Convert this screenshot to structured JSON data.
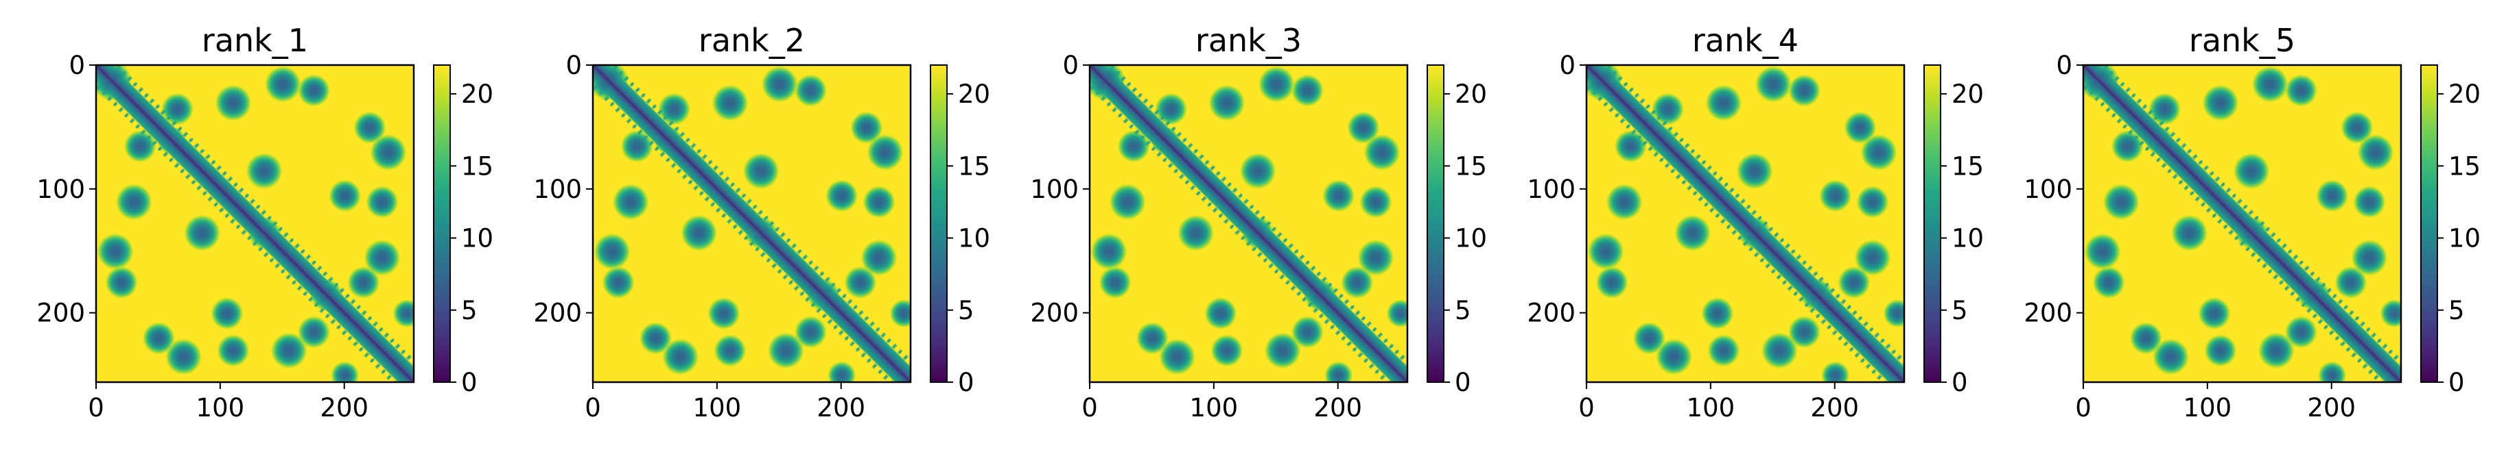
{
  "chart_data": [
    {
      "type": "heatmap",
      "title": "rank_1",
      "xlabel": "",
      "ylabel": "",
      "xlim": [
        0,
        256
      ],
      "ylim": [
        256,
        0
      ],
      "x_ticks": [
        "0",
        "100",
        "200"
      ],
      "y_ticks": [
        "0",
        "100",
        "200"
      ],
      "x_tick_values": [
        0,
        100,
        200
      ],
      "y_tick_values": [
        0,
        100,
        200
      ],
      "colorbar": {
        "min": 0,
        "max": 22,
        "ticks": [
          "0",
          "5",
          "10",
          "15",
          "20"
        ],
        "tick_values": [
          0,
          5,
          10,
          15,
          20
        ],
        "colormap": "viridis"
      },
      "matrix_size": 256,
      "description_values": "Symmetric pairwise distance matrix: near 0 along the diagonal, mid values (about 8-14) in contact blobs, saturated at about 22 elsewhere",
      "contact_blobs": [
        [
          12,
          12,
          10
        ],
        [
          35,
          65,
          8
        ],
        [
          30,
          110,
          9
        ],
        [
          60,
          60,
          7
        ],
        [
          85,
          135,
          9
        ],
        [
          105,
          200,
          8
        ],
        [
          135,
          135,
          8
        ],
        [
          155,
          230,
          9
        ],
        [
          175,
          20,
          8
        ],
        [
          185,
          185,
          8
        ],
        [
          200,
          250,
          7
        ],
        [
          230,
          110,
          8
        ],
        [
          235,
          70,
          9
        ],
        [
          215,
          175,
          8
        ],
        [
          15,
          150,
          9
        ],
        [
          50,
          220,
          8
        ]
      ],
      "grid": false
    },
    {
      "type": "heatmap",
      "title": "rank_2",
      "xlabel": "",
      "ylabel": "",
      "xlim": [
        0,
        256
      ],
      "ylim": [
        256,
        0
      ],
      "x_ticks": [
        "0",
        "100",
        "200"
      ],
      "y_ticks": [
        "0",
        "100",
        "200"
      ],
      "x_tick_values": [
        0,
        100,
        200
      ],
      "y_tick_values": [
        0,
        100,
        200
      ],
      "colorbar": {
        "min": 0,
        "max": 22,
        "ticks": [
          "0",
          "5",
          "10",
          "15",
          "20"
        ],
        "tick_values": [
          0,
          5,
          10,
          15,
          20
        ],
        "colormap": "viridis"
      },
      "matrix_size": 256,
      "description_values": "Symmetric pairwise distance matrix similar to rank_1",
      "contact_blobs": [
        [
          12,
          12,
          10
        ],
        [
          35,
          65,
          8
        ],
        [
          30,
          110,
          9
        ],
        [
          60,
          60,
          7
        ],
        [
          85,
          135,
          9
        ],
        [
          105,
          200,
          8
        ],
        [
          135,
          135,
          8
        ],
        [
          155,
          230,
          9
        ],
        [
          175,
          20,
          8
        ],
        [
          185,
          185,
          8
        ],
        [
          200,
          250,
          7
        ],
        [
          230,
          110,
          8
        ],
        [
          235,
          70,
          9
        ],
        [
          215,
          175,
          8
        ],
        [
          15,
          150,
          9
        ],
        [
          50,
          220,
          8
        ]
      ],
      "grid": false
    },
    {
      "type": "heatmap",
      "title": "rank_3",
      "xlabel": "",
      "ylabel": "",
      "xlim": [
        0,
        256
      ],
      "ylim": [
        256,
        0
      ],
      "x_ticks": [
        "0",
        "100",
        "200"
      ],
      "y_ticks": [
        "0",
        "100",
        "200"
      ],
      "x_tick_values": [
        0,
        100,
        200
      ],
      "y_tick_values": [
        0,
        100,
        200
      ],
      "colorbar": {
        "min": 0,
        "max": 22,
        "ticks": [
          "0",
          "5",
          "10",
          "15",
          "20"
        ],
        "tick_values": [
          0,
          5,
          10,
          15,
          20
        ],
        "colormap": "viridis"
      },
      "matrix_size": 256,
      "description_values": "Symmetric pairwise distance matrix similar to rank_1",
      "contact_blobs": [
        [
          12,
          12,
          10
        ],
        [
          35,
          65,
          8
        ],
        [
          30,
          110,
          9
        ],
        [
          60,
          60,
          7
        ],
        [
          85,
          135,
          9
        ],
        [
          105,
          200,
          8
        ],
        [
          135,
          135,
          8
        ],
        [
          155,
          230,
          9
        ],
        [
          175,
          20,
          8
        ],
        [
          185,
          185,
          8
        ],
        [
          200,
          250,
          7
        ],
        [
          230,
          110,
          8
        ],
        [
          235,
          70,
          9
        ],
        [
          215,
          175,
          8
        ],
        [
          15,
          150,
          9
        ],
        [
          50,
          220,
          8
        ]
      ],
      "grid": false
    },
    {
      "type": "heatmap",
      "title": "rank_4",
      "xlabel": "",
      "ylabel": "",
      "xlim": [
        0,
        256
      ],
      "ylim": [
        256,
        0
      ],
      "x_ticks": [
        "0",
        "100",
        "200"
      ],
      "y_ticks": [
        "0",
        "100",
        "200"
      ],
      "x_tick_values": [
        0,
        100,
        200
      ],
      "y_tick_values": [
        0,
        100,
        200
      ],
      "colorbar": {
        "min": 0,
        "max": 22,
        "ticks": [
          "0",
          "5",
          "10",
          "15",
          "20"
        ],
        "tick_values": [
          0,
          5,
          10,
          15,
          20
        ],
        "colormap": "viridis"
      },
      "matrix_size": 256,
      "description_values": "Symmetric pairwise distance matrix similar to rank_1",
      "contact_blobs": [
        [
          12,
          12,
          10
        ],
        [
          35,
          65,
          8
        ],
        [
          30,
          110,
          9
        ],
        [
          60,
          60,
          7
        ],
        [
          85,
          135,
          9
        ],
        [
          105,
          200,
          8
        ],
        [
          135,
          135,
          8
        ],
        [
          155,
          230,
          9
        ],
        [
          175,
          20,
          8
        ],
        [
          185,
          185,
          8
        ],
        [
          200,
          250,
          7
        ],
        [
          230,
          110,
          8
        ],
        [
          235,
          70,
          9
        ],
        [
          215,
          175,
          8
        ],
        [
          15,
          150,
          9
        ],
        [
          50,
          220,
          8
        ]
      ],
      "grid": false
    },
    {
      "type": "heatmap",
      "title": "rank_5",
      "xlabel": "",
      "ylabel": "",
      "xlim": [
        0,
        256
      ],
      "ylim": [
        256,
        0
      ],
      "x_ticks": [
        "0",
        "100",
        "200"
      ],
      "y_ticks": [
        "0",
        "100",
        "200"
      ],
      "x_tick_values": [
        0,
        100,
        200
      ],
      "y_tick_values": [
        0,
        100,
        200
      ],
      "colorbar": {
        "min": 0,
        "max": 22,
        "ticks": [
          "0",
          "5",
          "10",
          "15",
          "20"
        ],
        "tick_values": [
          0,
          5,
          10,
          15,
          20
        ],
        "colormap": "viridis"
      },
      "matrix_size": 256,
      "description_values": "Symmetric pairwise distance matrix similar to rank_1",
      "contact_blobs": [
        [
          12,
          12,
          10
        ],
        [
          35,
          65,
          8
        ],
        [
          30,
          110,
          9
        ],
        [
          60,
          60,
          7
        ],
        [
          85,
          135,
          9
        ],
        [
          105,
          200,
          8
        ],
        [
          135,
          135,
          8
        ],
        [
          155,
          230,
          9
        ],
        [
          175,
          20,
          8
        ],
        [
          185,
          185,
          8
        ],
        [
          200,
          250,
          7
        ],
        [
          230,
          110,
          8
        ],
        [
          235,
          70,
          9
        ],
        [
          215,
          175,
          8
        ],
        [
          15,
          150,
          9
        ],
        [
          50,
          220,
          8
        ]
      ],
      "grid": false
    }
  ],
  "colors": {
    "viridis_low": "#440154",
    "viridis_mid": "#21918c",
    "viridis_high": "#fde725",
    "axis": "#000000",
    "background": "#ffffff"
  }
}
